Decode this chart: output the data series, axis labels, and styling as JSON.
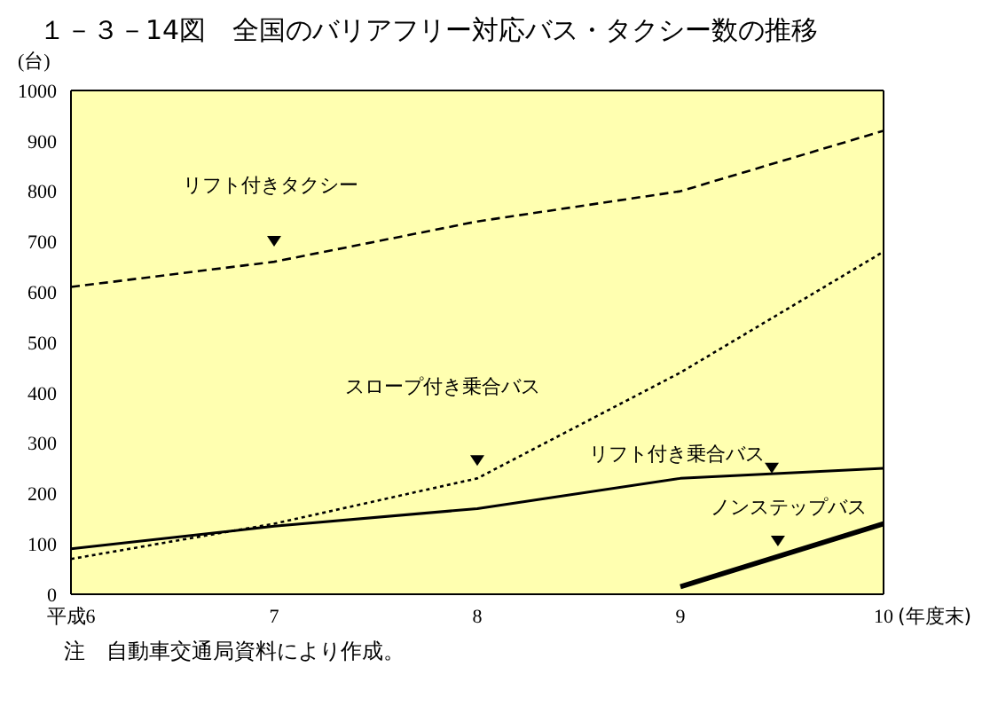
{
  "chart_data": {
    "type": "line",
    "title": "１－３－14図　全国のバリアフリー対応バス・タクシー数の推移",
    "ylabel": "(台)",
    "xlabel": "(年度末)",
    "categories": [
      "平成6",
      "7",
      "8",
      "9",
      "10"
    ],
    "series": [
      {
        "name": "リフト付きタクシー",
        "color": "#000000",
        "line_style": "dashed",
        "values": [
          610,
          660,
          740,
          800,
          920
        ]
      },
      {
        "name": "スロープ付き乗合バス",
        "color": "#000000",
        "line_style": "dotted",
        "values": [
          70,
          140,
          230,
          440,
          680
        ]
      },
      {
        "name": "リフト付き乗合バス",
        "color": "#000000",
        "line_style": "solid",
        "values": [
          90,
          135,
          170,
          230,
          250
        ]
      },
      {
        "name": "ノンステップバス",
        "color": "#000000",
        "line_style": "solid",
        "values": [
          null,
          null,
          null,
          15,
          140
        ]
      }
    ],
    "ylim": [
      0,
      1000
    ],
    "yticks": [
      0,
      100,
      200,
      300,
      400,
      500,
      600,
      700,
      800,
      900,
      1000
    ],
    "grid": false,
    "marker": "none",
    "annotations": [
      "注　自動車交通局資料により作成。"
    ]
  }
}
